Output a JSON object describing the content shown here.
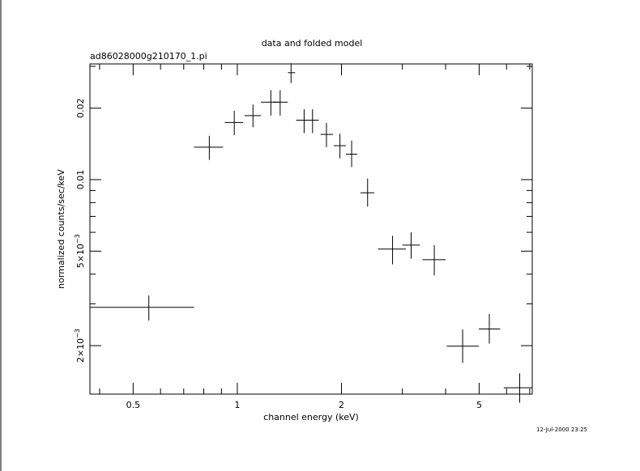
{
  "chart_data": {
    "type": "scatter",
    "title": "data and folded model",
    "subtitle": "ad86028000g210170_1.pi",
    "xlabel": "channel energy (keV)",
    "ylabel": "normalized counts/sec/keV",
    "timestamp": "12-Jul-2000 23:25",
    "x_scale": "log",
    "y_scale": "log",
    "xlim": [
      0.375,
      7.12
    ],
    "ylim": [
      0.00125,
      0.0307
    ],
    "x_ticks": [
      {
        "value": 0.5,
        "label": "0.5"
      },
      {
        "value": 1,
        "label": "1"
      },
      {
        "value": 2,
        "label": "2"
      },
      {
        "value": 5,
        "label": "5"
      }
    ],
    "y_ticks": [
      {
        "value": 0.002,
        "label": "2×10",
        "exp": "−3"
      },
      {
        "value": 0.005,
        "label": "5×10",
        "exp": "−3"
      },
      {
        "value": 0.01,
        "label": "0.01",
        "exp": ""
      },
      {
        "value": 0.02,
        "label": "0.02",
        "exp": ""
      }
    ],
    "grid": false,
    "series": [
      {
        "points": [
          {
            "x": 0.555,
            "xlo": 0.375,
            "xhi": 0.75,
            "y": 0.0029,
            "ylo": 0.00255,
            "yhi": 0.00325
          },
          {
            "x": 0.83,
            "xlo": 0.75,
            "xhi": 0.91,
            "y": 0.0137,
            "ylo": 0.0121,
            "yhi": 0.0153
          },
          {
            "x": 0.98,
            "xlo": 0.92,
            "xhi": 1.04,
            "y": 0.0174,
            "ylo": 0.0154,
            "yhi": 0.0195
          },
          {
            "x": 1.11,
            "xlo": 1.05,
            "xhi": 1.17,
            "y": 0.0186,
            "ylo": 0.0166,
            "yhi": 0.0207
          },
          {
            "x": 1.25,
            "xlo": 1.17,
            "xhi": 1.32,
            "y": 0.0212,
            "ylo": 0.0186,
            "yhi": 0.0238
          },
          {
            "x": 1.33,
            "xlo": 1.27,
            "xhi": 1.4,
            "y": 0.0212,
            "ylo": 0.0186,
            "yhi": 0.0238
          },
          {
            "x": 1.43,
            "xlo": 1.4,
            "xhi": 1.47,
            "y": 0.0282,
            "ylo": 0.0255,
            "yhi": 0.0309
          },
          {
            "x": 1.56,
            "xlo": 1.48,
            "xhi": 1.65,
            "y": 0.0178,
            "ylo": 0.0157,
            "yhi": 0.0198
          },
          {
            "x": 1.65,
            "xlo": 1.58,
            "xhi": 1.72,
            "y": 0.0178,
            "ylo": 0.0157,
            "yhi": 0.0198
          },
          {
            "x": 1.81,
            "xlo": 1.74,
            "xhi": 1.89,
            "y": 0.0155,
            "ylo": 0.0137,
            "yhi": 0.0173
          },
          {
            "x": 1.98,
            "xlo": 1.9,
            "xhi": 2.06,
            "y": 0.0139,
            "ylo": 0.0123,
            "yhi": 0.0156
          },
          {
            "x": 2.14,
            "xlo": 2.06,
            "xhi": 2.22,
            "y": 0.0128,
            "ylo": 0.0113,
            "yhi": 0.0146
          },
          {
            "x": 2.38,
            "xlo": 2.27,
            "xhi": 2.49,
            "y": 0.0088,
            "ylo": 0.0077,
            "yhi": 0.0101
          },
          {
            "x": 2.81,
            "xlo": 2.55,
            "xhi": 3.07,
            "y": 0.0051,
            "ylo": 0.0044,
            "yhi": 0.0058
          },
          {
            "x": 3.18,
            "xlo": 3.0,
            "xhi": 3.37,
            "y": 0.0053,
            "ylo": 0.00465,
            "yhi": 0.006
          },
          {
            "x": 3.71,
            "xlo": 3.43,
            "xhi": 4.0,
            "y": 0.0046,
            "ylo": 0.00395,
            "yhi": 0.0053
          },
          {
            "x": 4.48,
            "xlo": 4.03,
            "xhi": 4.99,
            "y": 0.00199,
            "ylo": 0.00169,
            "yhi": 0.00234
          },
          {
            "x": 5.35,
            "xlo": 4.99,
            "xhi": 5.75,
            "y": 0.00235,
            "ylo": 0.00204,
            "yhi": 0.00272
          },
          {
            "x": 6.55,
            "xlo": 5.89,
            "xhi": 7.12,
            "y": 0.00133,
            "ylo": 0.00115,
            "yhi": 0.00153
          }
        ]
      }
    ]
  }
}
